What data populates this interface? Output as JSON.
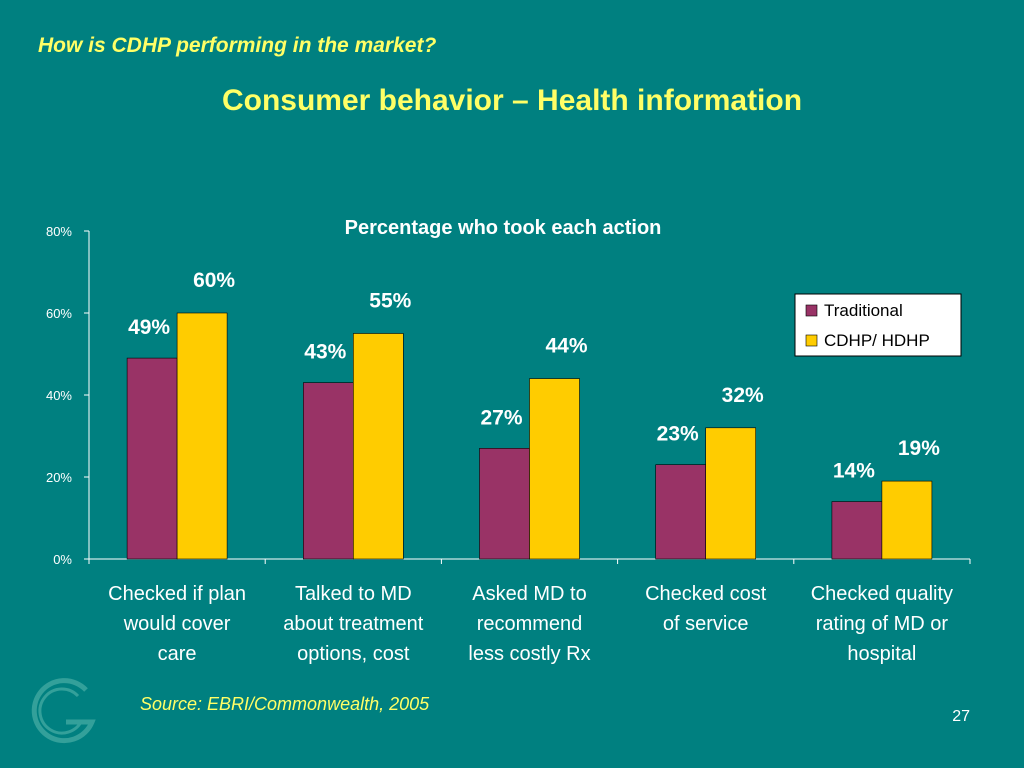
{
  "slide": {
    "subtitle": "How is CDHP performing in the market?",
    "title": "Consumer behavior – Health information",
    "source": "Source: EBRI/Commonwealth, 2005",
    "page_number": "27"
  },
  "colors": {
    "background": "#008080",
    "heading": "#ffff66",
    "traditional": "#993366",
    "cdhp": "#ffcc00"
  },
  "chart_data": {
    "type": "bar",
    "title": "Percentage who took each action",
    "categories": [
      [
        "Checked if plan",
        "would cover",
        "care"
      ],
      [
        "Talked to MD",
        "about treatment",
        "options, cost"
      ],
      [
        "Asked MD to",
        "recommend",
        "less costly Rx"
      ],
      [
        "Checked cost",
        "of service"
      ],
      [
        "Checked quality",
        "rating of MD or",
        "hospital"
      ]
    ],
    "series": [
      {
        "name": "Traditional",
        "values": [
          49,
          43,
          27,
          23,
          14
        ],
        "color": "#993366"
      },
      {
        "name": "CDHP/ HDHP",
        "values": [
          60,
          55,
          44,
          32,
          19
        ],
        "color": "#ffcc00"
      }
    ],
    "data_labels": [
      [
        "49%",
        "43%",
        "27%",
        "23%",
        "14%"
      ],
      [
        "60%",
        "55%",
        "44%",
        "32%",
        "19%"
      ]
    ],
    "ylim": [
      0,
      80
    ],
    "yticks": [
      "0%",
      "20%",
      "40%",
      "60%",
      "80%"
    ],
    "ytick_values": [
      0,
      20,
      40,
      60,
      80
    ],
    "legend_position": "right",
    "grid": false
  }
}
